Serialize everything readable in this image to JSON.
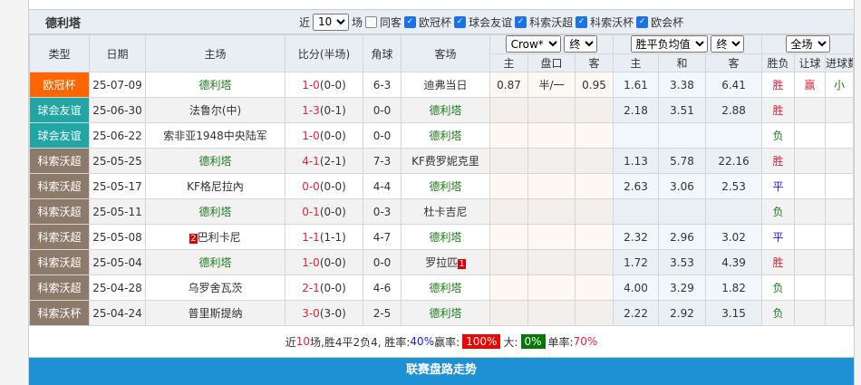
{
  "team": "德利塔",
  "filters": {
    "near": "近",
    "count": "10",
    "unit": "场",
    "same_venue": "同客",
    "leagues": [
      "欧冠杯",
      "球会友谊",
      "科索沃超",
      "科索沃杯",
      "欧会杯"
    ]
  },
  "headers": {
    "type": "类型",
    "date": "日期",
    "home": "主场",
    "score": "比分(半场)",
    "corner": "角球",
    "away": "客场",
    "crow_select": "Crow*",
    "crow_term": "终",
    "avg_select": "胜平负均值",
    "avg_term": "终",
    "range_select": "全场",
    "sub": [
      "主",
      "盘口",
      "客",
      "主",
      "和",
      "客",
      "胜负",
      "让球",
      "进球数"
    ]
  },
  "colors": {
    "欧冠杯": "#ff6600",
    "球会友谊": "#22a5a5",
    "科索沃超": "#8c7a6b",
    "科索沃杯": "#8c7a6b"
  },
  "rows": [
    {
      "type": "欧冠杯",
      "date": "25-07-09",
      "home": "德利塔",
      "home_rank": "",
      "score": "1-0",
      "half": "(0-0)",
      "corner": "6-3",
      "away": "迪弗当日",
      "away_rank": "",
      "c_h": "0.87",
      "c_line": "半/一",
      "c_a": "0.95",
      "a_h": "1.61",
      "a_d": "3.38",
      "a_a": "6.41",
      "result": "胜",
      "handicap": "赢",
      "goals": "小"
    },
    {
      "type": "球会友谊",
      "date": "25-06-30",
      "home": "法鲁尔(中)",
      "home_rank": "",
      "score": "1-3",
      "half": "(0-1)",
      "corner": "0-0",
      "away": "德利塔",
      "away_rank": "",
      "c_h": "",
      "c_line": "",
      "c_a": "",
      "a_h": "2.18",
      "a_d": "3.51",
      "a_a": "2.88",
      "result": "胜",
      "handicap": "",
      "goals": ""
    },
    {
      "type": "球会友谊",
      "date": "25-06-22",
      "home": "索非亚1948中央陆军",
      "home_rank": "",
      "score": "1-0",
      "half": "(0-0)",
      "corner": "0-0",
      "away": "德利塔",
      "away_rank": "",
      "c_h": "",
      "c_line": "",
      "c_a": "",
      "a_h": "",
      "a_d": "",
      "a_a": "",
      "result": "负",
      "handicap": "",
      "goals": ""
    },
    {
      "type": "科索沃超",
      "date": "25-05-25",
      "home": "德利塔",
      "home_rank": "",
      "score": "4-1",
      "half": "(2-1)",
      "corner": "7-3",
      "away": "KF费罗妮克里",
      "away_rank": "",
      "c_h": "",
      "c_line": "",
      "c_a": "",
      "a_h": "1.13",
      "a_d": "5.78",
      "a_a": "22.16",
      "result": "胜",
      "handicap": "",
      "goals": ""
    },
    {
      "type": "科索沃超",
      "date": "25-05-17",
      "home": "KF格尼拉內",
      "home_rank": "",
      "score": "0-0",
      "half": "(0-0)",
      "corner": "4-4",
      "away": "德利塔",
      "away_rank": "",
      "c_h": "",
      "c_line": "",
      "c_a": "",
      "a_h": "2.63",
      "a_d": "3.06",
      "a_a": "2.53",
      "result": "平",
      "handicap": "",
      "goals": ""
    },
    {
      "type": "科索沃超",
      "date": "25-05-11",
      "home": "德利塔",
      "home_rank": "",
      "score": "0-1",
      "half": "(0-0)",
      "corner": "0-3",
      "away": "杜卡吉尼",
      "away_rank": "",
      "c_h": "",
      "c_line": "",
      "c_a": "",
      "a_h": "",
      "a_d": "",
      "a_a": "",
      "result": "负",
      "handicap": "",
      "goals": ""
    },
    {
      "type": "科索沃超",
      "date": "25-05-08",
      "home": "巴利卡尼",
      "home_rank": "2",
      "score": "1-1",
      "half": "(1-1)",
      "corner": "4-7",
      "away": "德利塔",
      "away_rank": "",
      "c_h": "",
      "c_line": "",
      "c_a": "",
      "a_h": "2.32",
      "a_d": "2.96",
      "a_a": "3.02",
      "result": "平",
      "handicap": "",
      "goals": ""
    },
    {
      "type": "科索沃超",
      "date": "25-05-04",
      "home": "德利塔",
      "home_rank": "",
      "score": "1-0",
      "half": "(0-0)",
      "corner": "0-0",
      "away": "罗拉匹",
      "away_rank": "1",
      "c_h": "",
      "c_line": "",
      "c_a": "",
      "a_h": "1.72",
      "a_d": "3.53",
      "a_a": "4.39",
      "result": "胜",
      "handicap": "",
      "goals": ""
    },
    {
      "type": "科索沃超",
      "date": "25-04-28",
      "home": "乌罗舍瓦茨",
      "home_rank": "",
      "score": "2-1",
      "half": "(0-0)",
      "corner": "4-6",
      "away": "德利塔",
      "away_rank": "",
      "c_h": "",
      "c_line": "",
      "c_a": "",
      "a_h": "4.00",
      "a_d": "3.29",
      "a_a": "1.82",
      "result": "负",
      "handicap": "",
      "goals": ""
    },
    {
      "type": "科索沃杯",
      "date": "25-04-24",
      "home": "普里斯提纳",
      "home_rank": "",
      "score": "3-0",
      "half": "(3-0)",
      "corner": "2-5",
      "away": "德利塔",
      "away_rank": "",
      "c_h": "",
      "c_line": "",
      "c_a": "",
      "a_h": "2.22",
      "a_d": "2.92",
      "a_a": "3.15",
      "result": "负",
      "handicap": "",
      "goals": ""
    }
  ],
  "summary": {
    "p1": "近",
    "n": "10",
    "p2": "场,胜4平2负4, 胜率:",
    "win_rate": "40%",
    "p3": " 赢率:",
    "handicap_rate": "100%",
    "p4": " 大:",
    "over_rate": "0%",
    "p5": " 单率:",
    "odd_rate": "70%"
  },
  "footer": "联赛盘路走势"
}
